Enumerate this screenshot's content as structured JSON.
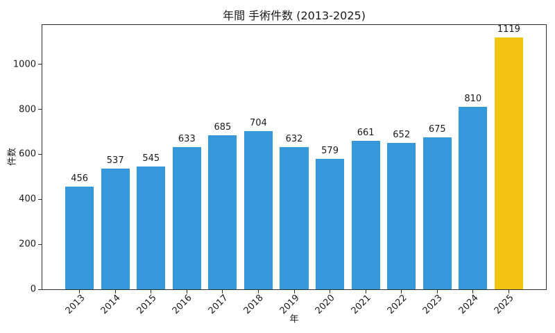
{
  "chart_data": {
    "type": "bar",
    "title": "年間 手術件数 (2013-2025)",
    "xlabel": "年",
    "ylabel": "件数",
    "categories": [
      "2013",
      "2014",
      "2015",
      "2016",
      "2017",
      "2018",
      "2019",
      "2020",
      "2021",
      "2022",
      "2023",
      "2024",
      "2025"
    ],
    "values": [
      456,
      537,
      545,
      633,
      685,
      704,
      632,
      579,
      661,
      652,
      675,
      810,
      1119
    ],
    "value_labels_shown": true,
    "yticks": [
      0,
      200,
      400,
      600,
      800,
      1000
    ],
    "ylim": [
      0,
      1175
    ],
    "xlim": [
      -1.04,
      13.04
    ],
    "bar_width_units": 0.8,
    "xtick_rotation_deg": 45,
    "grid": false,
    "colors": {
      "bar_default": "#3498db",
      "bar_highlight": "#f1c40f",
      "highlight_category": "2025",
      "axis": "#2e2e2e",
      "text": "#191919",
      "background": "#ffffff"
    }
  }
}
